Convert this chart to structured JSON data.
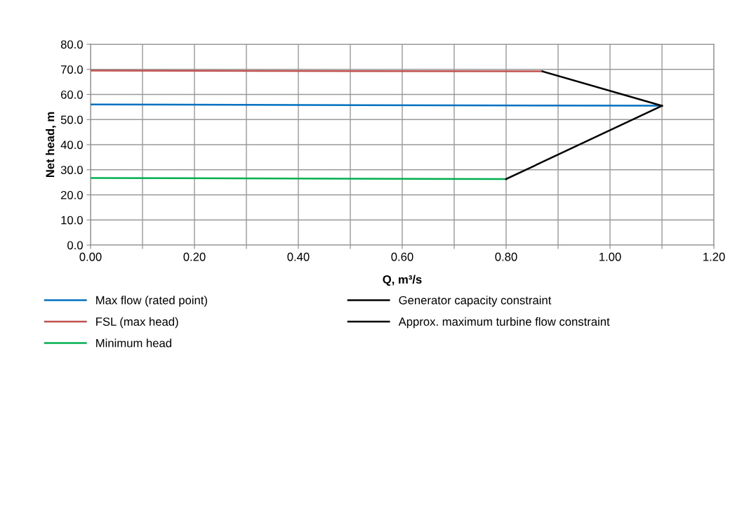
{
  "chart_data": {
    "type": "line",
    "xlabel": "Q, m³/s",
    "ylabel": "Net head, m",
    "series": [
      {
        "name": "Max flow (rated point)",
        "color": "#0070c0",
        "x": [
          0,
          1.1
        ],
        "values": [
          56.0,
          55.5
        ]
      },
      {
        "name": "FSL (max head)",
        "color": "#c0504d",
        "x": [
          0,
          0.87
        ],
        "values": [
          69.5,
          69.2
        ]
      },
      {
        "name": "Minimum head",
        "color": "#00b050",
        "x": [
          0,
          0.8
        ],
        "values": [
          26.7,
          26.3
        ]
      },
      {
        "name": "Generator capacity constraint",
        "color": "#000000",
        "x": [
          0.87,
          1.1
        ],
        "values": [
          69.2,
          55.5
        ]
      },
      {
        "name": "Approx. maximum turbine flow constraint",
        "color": "#000000",
        "x": [
          0.8,
          1.1
        ],
        "values": [
          26.3,
          55.5
        ]
      }
    ],
    "xlim": [
      0,
      1.2
    ],
    "ylim": [
      0,
      80
    ],
    "xticks": [
      {
        "value": 0,
        "label": "0.00"
      },
      {
        "value": 0.1,
        "label": null
      },
      {
        "value": 0.2,
        "label": "0.20"
      },
      {
        "value": 0.3,
        "label": null
      },
      {
        "value": 0.4,
        "label": "0.40"
      },
      {
        "value": 0.5,
        "label": null
      },
      {
        "value": 0.6,
        "label": "0.60"
      },
      {
        "value": 0.7,
        "label": null
      },
      {
        "value": 0.8,
        "label": "0.80"
      },
      {
        "value": 0.9,
        "label": null
      },
      {
        "value": 1.0,
        "label": "1.00"
      },
      {
        "value": 1.1,
        "label": null
      },
      {
        "value": 1.2,
        "label": "1.20"
      }
    ],
    "yticks": [
      {
        "value": 0,
        "label": "0.0"
      },
      {
        "value": 10,
        "label": "10.0"
      },
      {
        "value": 20,
        "label": "20.0"
      },
      {
        "value": 30,
        "label": "30.0"
      },
      {
        "value": 40,
        "label": "40.0"
      },
      {
        "value": 50,
        "label": "50.0"
      },
      {
        "value": 60,
        "label": "60.0"
      },
      {
        "value": 70,
        "label": "70.0"
      },
      {
        "value": 80,
        "label": "80.0"
      }
    ],
    "grid": true,
    "legend": "bottom",
    "marker": "none",
    "line_style": "solid"
  }
}
